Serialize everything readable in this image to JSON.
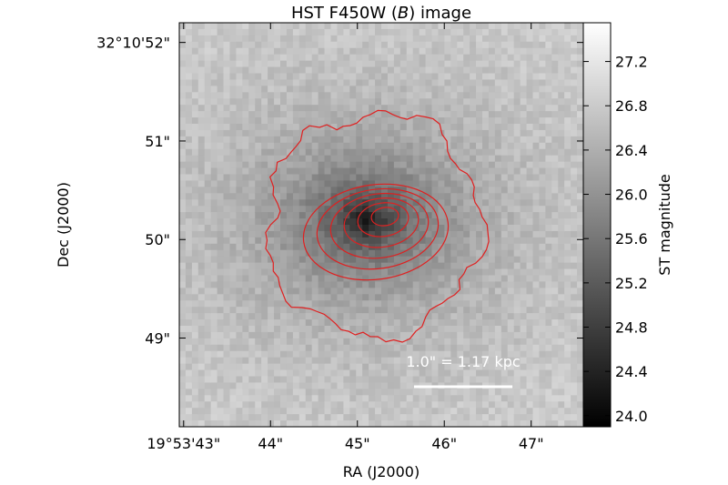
{
  "chart_data": {
    "type": "heatmap",
    "title": "HST F450W ($B$) image",
    "title_parts": {
      "pre": "HST F450W (",
      "italic": "B",
      "post": ") image"
    },
    "xlabel": "RA (J2000)",
    "ylabel": "Dec (J2000)",
    "x_ticks": [
      "19°53'43\"",
      "44\"",
      "45\"",
      "46\"",
      "47\""
    ],
    "x_tick_values_sec": [
      43,
      44,
      45,
      46,
      47
    ],
    "xlim_sec": [
      42.95,
      47.6
    ],
    "y_ticks": [
      "32°10'52\"",
      "51\"",
      "50\"",
      "49\""
    ],
    "y_tick_values_arcsec": [
      52,
      51,
      50,
      49
    ],
    "ylim_arcsec": [
      48.1,
      52.2
    ],
    "colorbar": {
      "label": "ST magnitude",
      "ticks": [
        "27.2",
        "26.8",
        "26.4",
        "26.0",
        "25.6",
        "25.2",
        "24.8",
        "24.4",
        "24.0"
      ],
      "tick_values": [
        27.2,
        26.8,
        26.4,
        26.0,
        25.6,
        25.2,
        24.8,
        24.4,
        24.0
      ],
      "range": [
        23.9,
        27.55
      ],
      "colormap": "grayscale (dark = bright source)"
    },
    "galaxy_center": {
      "ra_sec": 45.1,
      "dec_arcsec": 50.2
    },
    "contours": {
      "color": "#e02020",
      "count": 7
    },
    "scalebar_label": "1.0\" = 1.17 kpc",
    "scalebar_arcsec": 1.0,
    "grid": false
  },
  "colors": {
    "contour": "#e02020",
    "scalebar": "#ffffff",
    "background": "#ffffff"
  }
}
